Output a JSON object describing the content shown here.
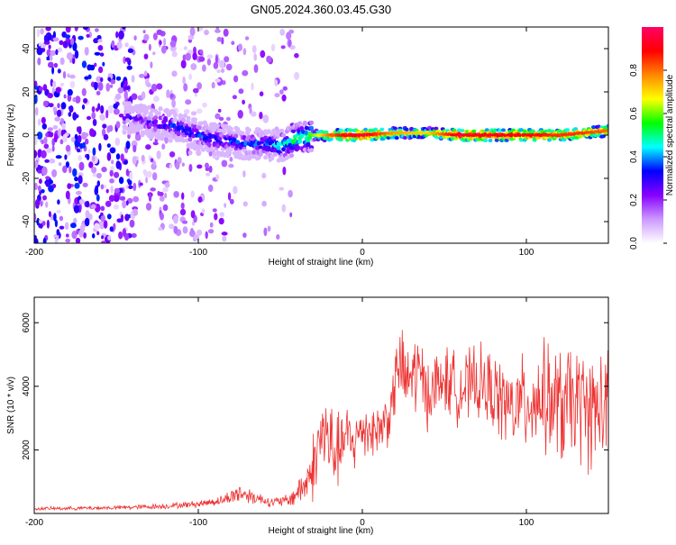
{
  "title": "GN05.2024.360.03.45.G30",
  "chart_data": [
    {
      "type": "heatmap",
      "xlabel": "Height of straight line (km)",
      "ylabel": "Frequency (Hz)",
      "xlim": [
        -200,
        150
      ],
      "ylim": [
        -50,
        50
      ],
      "x_ticks": [
        -200,
        -100,
        0,
        100
      ],
      "y_ticks": [
        -40,
        -20,
        0,
        20,
        40
      ],
      "colorbar": {
        "label": "Normalized spectral amplitude",
        "range": [
          0,
          1
        ],
        "ticks": [
          0.0,
          0.2,
          0.4,
          0.6,
          0.8
        ],
        "colors": [
          "#ffffff",
          "#cc99ff",
          "#8800ff",
          "#0000ff",
          "#00ffff",
          "#00ff00",
          "#ffff00",
          "#ff8800",
          "#ff0000",
          "#ff0066"
        ]
      },
      "ridge": [
        {
          "x": -140,
          "f": 8,
          "a": 0.25
        },
        {
          "x": -130,
          "f": 6,
          "a": 0.3
        },
        {
          "x": -120,
          "f": 5,
          "a": 0.35
        },
        {
          "x": -110,
          "f": 3,
          "a": 0.35
        },
        {
          "x": -100,
          "f": 0,
          "a": 0.35
        },
        {
          "x": -90,
          "f": -2,
          "a": 0.35
        },
        {
          "x": -80,
          "f": -3,
          "a": 0.35
        },
        {
          "x": -70,
          "f": -4,
          "a": 0.35
        },
        {
          "x": -60,
          "f": -4,
          "a": 0.4
        },
        {
          "x": -50,
          "f": -5,
          "a": 0.45
        },
        {
          "x": -40,
          "f": -2,
          "a": 0.55
        },
        {
          "x": -30,
          "f": 0,
          "a": 0.6
        },
        {
          "x": -20,
          "f": 0,
          "a": 0.8
        },
        {
          "x": -10,
          "f": 0,
          "a": 0.9
        },
        {
          "x": 0,
          "f": 0,
          "a": 0.95
        },
        {
          "x": 20,
          "f": 1,
          "a": 0.75
        },
        {
          "x": 40,
          "f": 1,
          "a": 0.7
        },
        {
          "x": 60,
          "f": 0,
          "a": 0.95
        },
        {
          "x": 80,
          "f": 0,
          "a": 0.9
        },
        {
          "x": 100,
          "f": 0,
          "a": 0.9
        },
        {
          "x": 120,
          "f": 0,
          "a": 0.85
        },
        {
          "x": 135,
          "f": 1,
          "a": 0.85
        },
        {
          "x": 150,
          "f": 2,
          "a": 0.8
        }
      ]
    },
    {
      "type": "line",
      "xlabel": "Height of straight line (km)",
      "ylabel": "SNR (10 * v/v)",
      "xlim": [
        -200,
        150
      ],
      "ylim": [
        0,
        6800
      ],
      "x_ticks": [
        -200,
        -100,
        0,
        100
      ],
      "y_ticks": [
        2000,
        4000,
        6000
      ],
      "color": "#ee3333",
      "envelope": [
        {
          "x": -200,
          "mean": 150,
          "spread": 60
        },
        {
          "x": -150,
          "mean": 180,
          "spread": 80
        },
        {
          "x": -120,
          "mean": 230,
          "spread": 100
        },
        {
          "x": -100,
          "mean": 300,
          "spread": 130
        },
        {
          "x": -85,
          "mean": 420,
          "spread": 180
        },
        {
          "x": -75,
          "mean": 650,
          "spread": 400
        },
        {
          "x": -65,
          "mean": 500,
          "spread": 250
        },
        {
          "x": -55,
          "mean": 350,
          "spread": 180
        },
        {
          "x": -45,
          "mean": 400,
          "spread": 250
        },
        {
          "x": -35,
          "mean": 900,
          "spread": 700
        },
        {
          "x": -28,
          "mean": 1700,
          "spread": 1500
        },
        {
          "x": -25,
          "mean": 2600,
          "spread": 1800
        },
        {
          "x": -20,
          "mean": 2200,
          "spread": 1700
        },
        {
          "x": -15,
          "mean": 1900,
          "spread": 1400
        },
        {
          "x": -10,
          "mean": 2400,
          "spread": 1200
        },
        {
          "x": -5,
          "mean": 2200,
          "spread": 1100
        },
        {
          "x": 0,
          "mean": 2700,
          "spread": 1100
        },
        {
          "x": 10,
          "mean": 2600,
          "spread": 1000
        },
        {
          "x": 18,
          "mean": 3300,
          "spread": 1200
        },
        {
          "x": 22,
          "mean": 4800,
          "spread": 1400
        },
        {
          "x": 27,
          "mean": 4100,
          "spread": 1500
        },
        {
          "x": 33,
          "mean": 4500,
          "spread": 1700
        },
        {
          "x": 40,
          "mean": 3800,
          "spread": 1300
        },
        {
          "x": 50,
          "mean": 4200,
          "spread": 1300
        },
        {
          "x": 60,
          "mean": 3900,
          "spread": 1300
        },
        {
          "x": 70,
          "mean": 4100,
          "spread": 1400
        },
        {
          "x": 80,
          "mean": 3800,
          "spread": 1500
        },
        {
          "x": 90,
          "mean": 3300,
          "spread": 1600
        },
        {
          "x": 100,
          "mean": 3500,
          "spread": 1800
        },
        {
          "x": 110,
          "mean": 3700,
          "spread": 2000
        },
        {
          "x": 120,
          "mean": 3300,
          "spread": 2300
        },
        {
          "x": 130,
          "mean": 3500,
          "spread": 2200
        },
        {
          "x": 140,
          "mean": 3200,
          "spread": 2200
        },
        {
          "x": 150,
          "mean": 3400,
          "spread": 2000
        }
      ]
    }
  ]
}
